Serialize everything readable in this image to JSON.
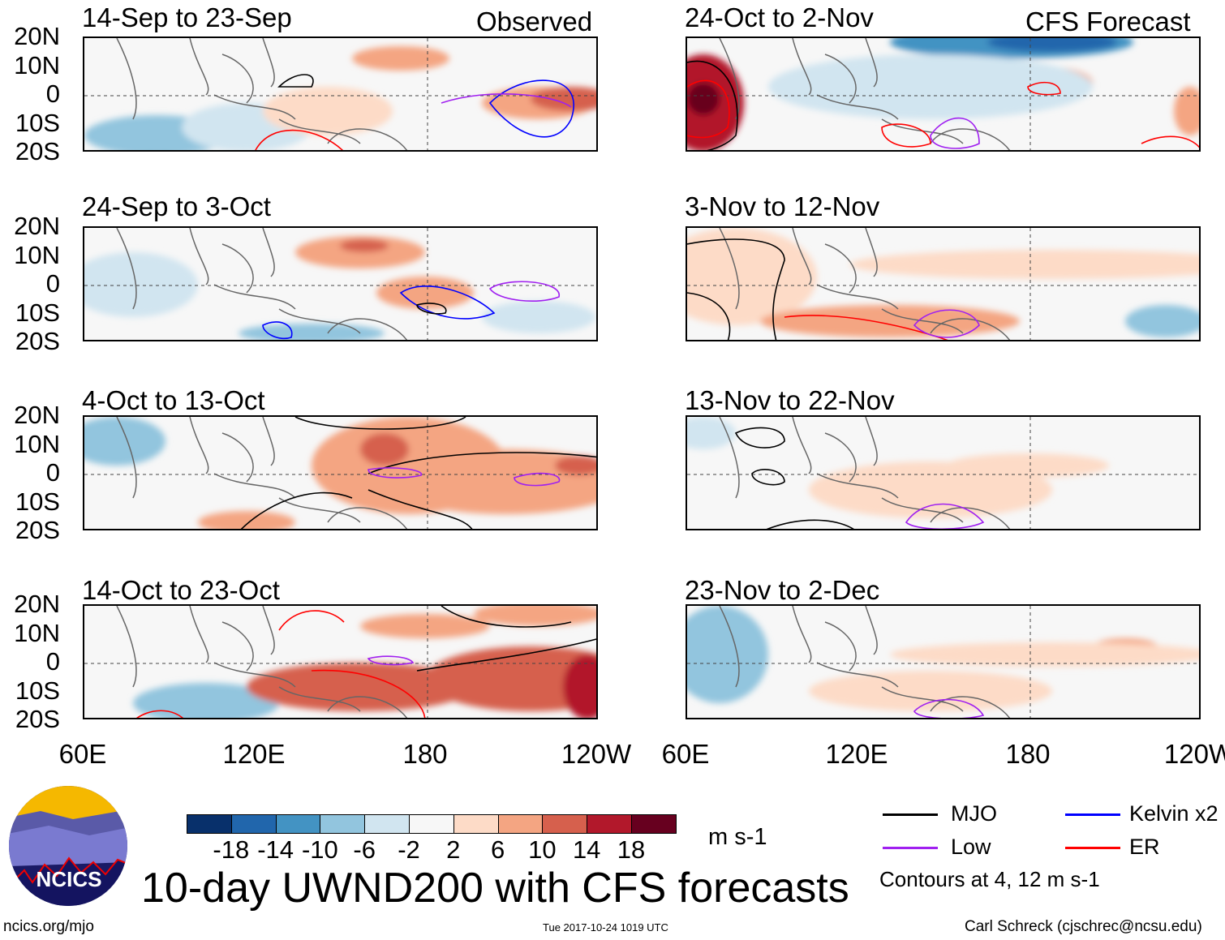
{
  "header": {
    "observed_label": "Observed",
    "forecast_label": "CFS Forecast"
  },
  "panels_left": [
    {
      "title": "14-Sep to 23-Sep"
    },
    {
      "title": "24-Sep to 3-Oct"
    },
    {
      "title": "4-Oct to 13-Oct"
    },
    {
      "title": "14-Oct to 23-Oct"
    }
  ],
  "panels_right": [
    {
      "title": "24-Oct to 2-Nov"
    },
    {
      "title": "3-Nov to 12-Nov"
    },
    {
      "title": "13-Nov to 22-Nov"
    },
    {
      "title": "23-Nov to 2-Dec"
    }
  ],
  "lat_labels": [
    "20N",
    "10N",
    "0",
    "10S",
    "20S"
  ],
  "lon_labels": [
    "60E",
    "120E",
    "180",
    "120W"
  ],
  "colorbar": {
    "colors": [
      "#08306b",
      "#2166ac",
      "#4393c3",
      "#92c5de",
      "#d1e5f0",
      "#f7f7f7",
      "#fddbc7",
      "#f4a582",
      "#d6604d",
      "#b2182b",
      "#67001f"
    ],
    "labels": [
      "-18",
      "-14",
      "-10",
      "-6",
      "-2",
      "2",
      "6",
      "10",
      "14",
      "18"
    ],
    "units": "m s-1"
  },
  "legend": {
    "items": [
      {
        "label": "MJO",
        "color": "#000000"
      },
      {
        "label": "Kelvin x2",
        "color": "#0000ff"
      },
      {
        "label": "Low",
        "color": "#a020f0"
      },
      {
        "label": "ER",
        "color": "#ff0000"
      }
    ],
    "note": "Contours at 4, 12 m s-1"
  },
  "title": "10-day UWND200 with CFS forecasts",
  "logo_text": "NCICS",
  "footer": {
    "url": "ncics.org/mjo",
    "timestamp": "Tue 2017-10-24 1019 UTC",
    "author": "Carl Schreck (cjschrec@ncsu.edu)"
  }
}
